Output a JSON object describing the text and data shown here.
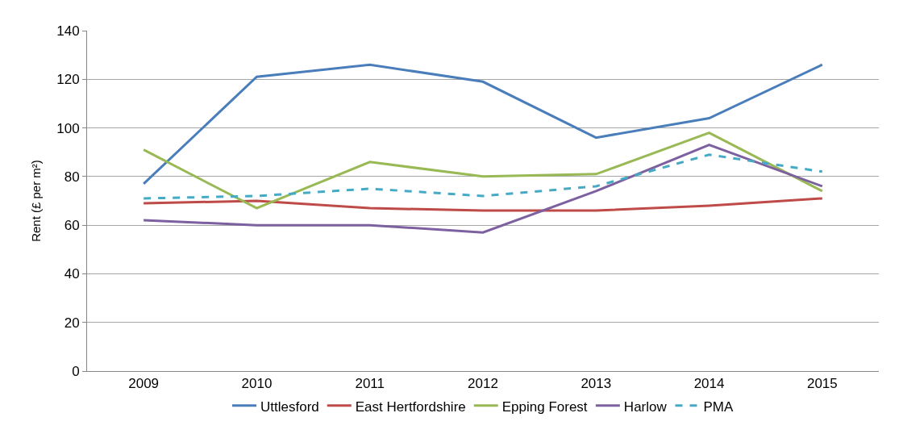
{
  "chart_data": {
    "type": "line",
    "ylabel": "Rent (£ per m²)",
    "categories": [
      "2009",
      "2010",
      "2011",
      "2012",
      "2013",
      "2014",
      "2015"
    ],
    "series": [
      {
        "name": "Uttlesford",
        "color": "#4a7ebb",
        "values": [
          77,
          121,
          126,
          119,
          96,
          104,
          126
        ]
      },
      {
        "name": "East Hertfordshire",
        "color": "#be4b48",
        "values": [
          69,
          70,
          67,
          66,
          66,
          68,
          71
        ]
      },
      {
        "name": "Epping Forest",
        "color": "#98b954",
        "values": [
          91,
          67,
          86,
          80,
          81,
          98,
          74
        ]
      },
      {
        "name": "Harlow",
        "color": "#7d60a0",
        "values": [
          62,
          60,
          60,
          57,
          74,
          93,
          76
        ]
      },
      {
        "name": "PMA",
        "color": "#46aac5",
        "line_style": "dashed",
        "values": [
          71,
          72,
          75,
          72,
          76,
          89,
          82
        ]
      }
    ],
    "ylim": [
      0,
      140
    ],
    "yticks": [
      0,
      20,
      40,
      60,
      80,
      100,
      120,
      140
    ],
    "grid": "y",
    "legend": "bottom",
    "marker": "none"
  }
}
